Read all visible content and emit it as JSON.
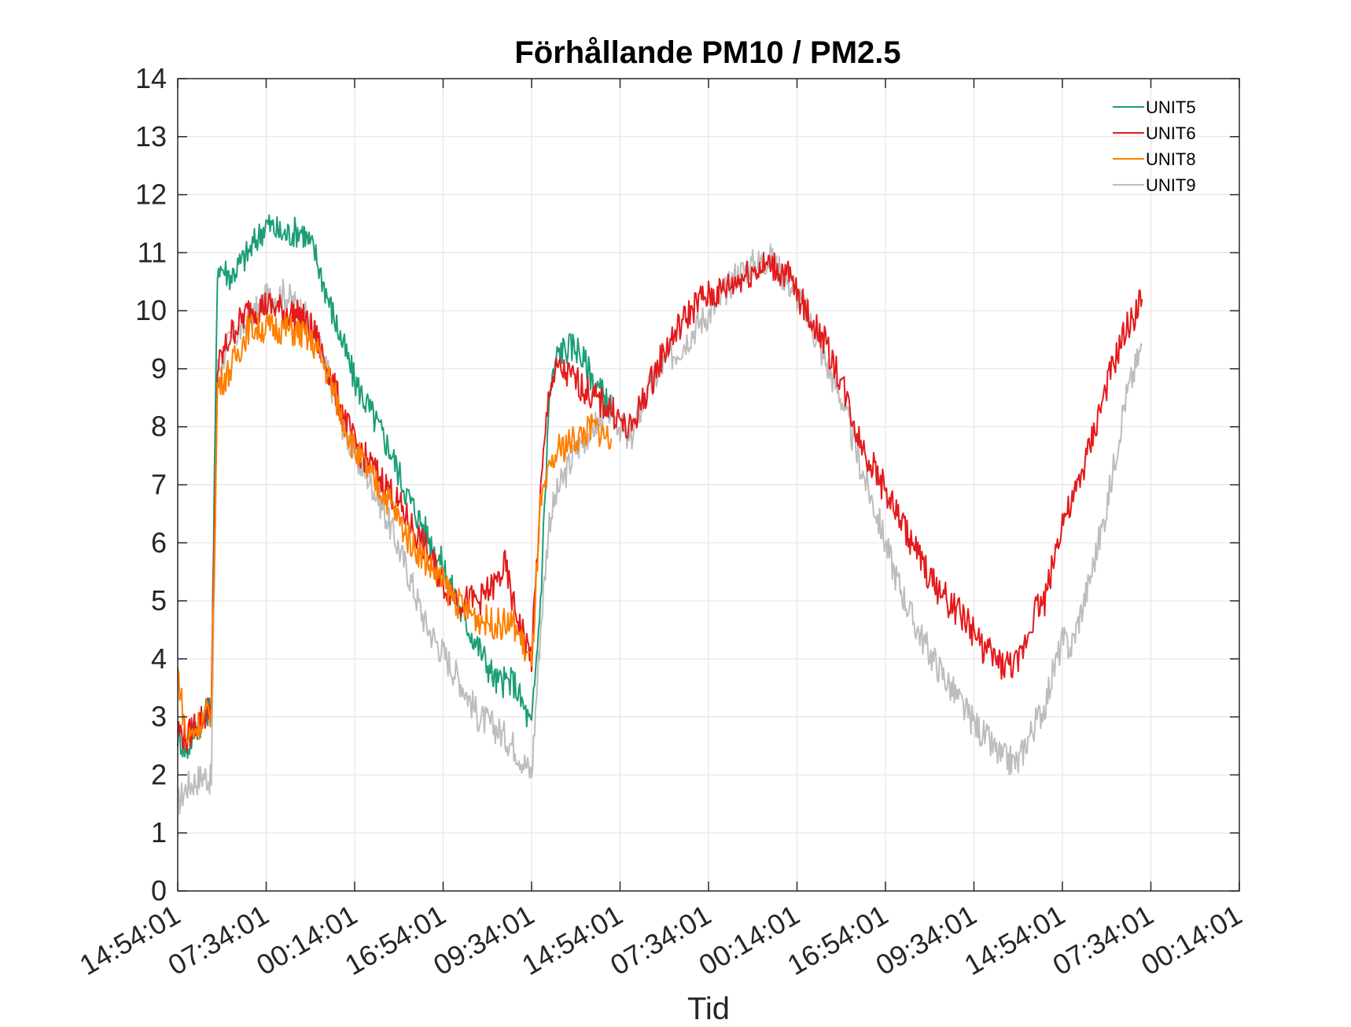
{
  "chart_data": {
    "type": "line",
    "title": "Förhållande PM10 / PM2.5",
    "xlabel": "Tid",
    "ylabel": "",
    "ylim": [
      0,
      14
    ],
    "yticks": [
      0,
      1,
      2,
      3,
      4,
      5,
      6,
      7,
      8,
      9,
      10,
      11,
      12,
      13,
      14
    ],
    "xlim": [
      0,
      12
    ],
    "xtick_labels": [
      "14:54:01",
      "07:34:01",
      "00:14:01",
      "16:54:01",
      "09:34:01",
      "14:54:01",
      "07:34:01",
      "00:14:01",
      "16:54:01",
      "09:34:01",
      "14:54:01",
      "07:34:01",
      "00:14:01"
    ],
    "grid": true,
    "legend_position": "top-right",
    "series": [
      {
        "name": "UNIT5",
        "color": "#1b9e77",
        "x": [
          0,
          0.1,
          0.2,
          0.3,
          0.38,
          0.45,
          0.6,
          0.8,
          1.0,
          1.2,
          1.4,
          1.55,
          1.7,
          1.85,
          2.0,
          2.2,
          2.4,
          2.6,
          2.8,
          3.0,
          3.2,
          3.4,
          3.6,
          3.8,
          4.0,
          4.1,
          4.2,
          4.3,
          4.5,
          4.7,
          4.9
        ],
        "y": [
          2.7,
          2.4,
          2.8,
          3.0,
          3.2,
          10.8,
          10.6,
          11.0,
          11.5,
          11.3,
          11.4,
          11.0,
          10.2,
          9.5,
          8.8,
          8.2,
          7.6,
          6.8,
          6.2,
          5.6,
          4.8,
          4.2,
          3.6,
          3.6,
          2.8,
          5.0,
          8.5,
          9.3,
          9.4,
          8.8,
          8.3
        ]
      },
      {
        "name": "UNIT6",
        "color": "#e41a1c",
        "x": [
          0,
          0.1,
          0.2,
          0.3,
          0.38,
          0.45,
          0.6,
          0.8,
          1.0,
          1.2,
          1.4,
          1.55,
          1.7,
          1.85,
          2.0,
          2.2,
          2.4,
          2.6,
          2.8,
          3.0,
          3.2,
          3.4,
          3.6,
          3.7,
          3.8,
          4.0,
          4.1,
          4.2,
          4.3,
          4.5,
          4.7,
          4.9,
          5.1,
          5.3,
          5.5,
          5.7,
          5.9,
          6.1,
          6.3,
          6.5,
          6.7,
          6.9,
          7.1,
          7.3,
          7.5,
          7.7,
          7.9,
          8.1,
          8.3,
          8.5,
          8.7,
          8.9,
          9.1,
          9.3,
          9.5,
          9.6,
          9.7,
          9.8,
          9.9,
          10.0,
          10.1,
          10.3,
          10.5,
          10.7,
          10.9
        ],
        "y": [
          2.8,
          2.6,
          2.9,
          3.0,
          3.2,
          9.0,
          9.6,
          10.0,
          10.1,
          10.0,
          9.9,
          9.6,
          9.0,
          8.3,
          7.7,
          7.3,
          6.9,
          6.4,
          5.9,
          5.3,
          5.0,
          5.0,
          5.3,
          5.6,
          4.9,
          4.0,
          6.8,
          8.7,
          9.0,
          8.8,
          8.5,
          8.3,
          7.9,
          8.6,
          9.3,
          9.8,
          10.2,
          10.3,
          10.5,
          10.7,
          10.8,
          10.6,
          10.0,
          9.5,
          8.8,
          7.8,
          7.2,
          6.6,
          6.0,
          5.4,
          5.0,
          4.7,
          4.2,
          3.9,
          3.9,
          4.4,
          4.9,
          5.0,
          5.7,
          6.4,
          6.6,
          7.6,
          8.7,
          9.6,
          10.2
        ]
      },
      {
        "name": "UNIT8",
        "color": "#ff7f00",
        "x": [
          0,
          0.1,
          0.2,
          0.3,
          0.38,
          0.45,
          0.6,
          0.8,
          1.0,
          1.2,
          1.4,
          1.55,
          1.7,
          1.85,
          2.0,
          2.2,
          2.4,
          2.6,
          2.8,
          3.0,
          3.2,
          3.4,
          3.6,
          3.8,
          4.0,
          4.1,
          4.2,
          4.3,
          4.5,
          4.7,
          4.9
        ],
        "y": [
          3.8,
          2.6,
          2.8,
          3.0,
          3.1,
          8.7,
          9.0,
          9.7,
          9.7,
          9.7,
          9.6,
          9.4,
          8.9,
          8.2,
          7.6,
          7.1,
          6.7,
          6.1,
          5.7,
          5.3,
          4.9,
          4.7,
          4.6,
          4.6,
          3.9,
          6.6,
          7.2,
          7.6,
          7.8,
          8.0,
          7.8
        ]
      },
      {
        "name": "UNIT9",
        "color": "#bdbdbd",
        "x": [
          0,
          0.1,
          0.2,
          0.3,
          0.38,
          0.45,
          0.6,
          0.8,
          1.0,
          1.2,
          1.4,
          1.55,
          1.7,
          1.85,
          2.0,
          2.2,
          2.4,
          2.6,
          2.8,
          3.0,
          3.2,
          3.4,
          3.6,
          3.8,
          4.0,
          4.1,
          4.2,
          4.3,
          4.5,
          4.7,
          4.9,
          5.1,
          5.3,
          5.5,
          5.7,
          5.9,
          6.1,
          6.3,
          6.5,
          6.7,
          6.9,
          7.1,
          7.3,
          7.5,
          7.7,
          7.9,
          8.1,
          8.3,
          8.5,
          8.7,
          8.9,
          9.1,
          9.3,
          9.5,
          9.6,
          9.7,
          9.8,
          9.9,
          10.0,
          10.1,
          10.3,
          10.5,
          10.7,
          10.9
        ],
        "y": [
          1.5,
          1.8,
          1.9,
          2.0,
          1.9,
          9.0,
          9.5,
          9.8,
          10.2,
          10.3,
          10.0,
          9.6,
          8.9,
          8.1,
          7.5,
          7.0,
          6.3,
          5.5,
          4.6,
          4.1,
          3.6,
          3.0,
          2.8,
          2.5,
          2.0,
          4.5,
          6.4,
          6.9,
          7.6,
          8.0,
          8.3,
          7.7,
          8.6,
          9.1,
          9.4,
          9.8,
          10.1,
          10.6,
          10.8,
          10.9,
          10.5,
          10.0,
          9.2,
          8.5,
          7.4,
          6.5,
          5.5,
          4.7,
          4.1,
          3.6,
          3.1,
          2.7,
          2.3,
          2.2,
          2.6,
          2.9,
          3.2,
          3.8,
          4.3,
          4.2,
          5.3,
          6.6,
          8.4,
          9.4
        ]
      }
    ]
  }
}
